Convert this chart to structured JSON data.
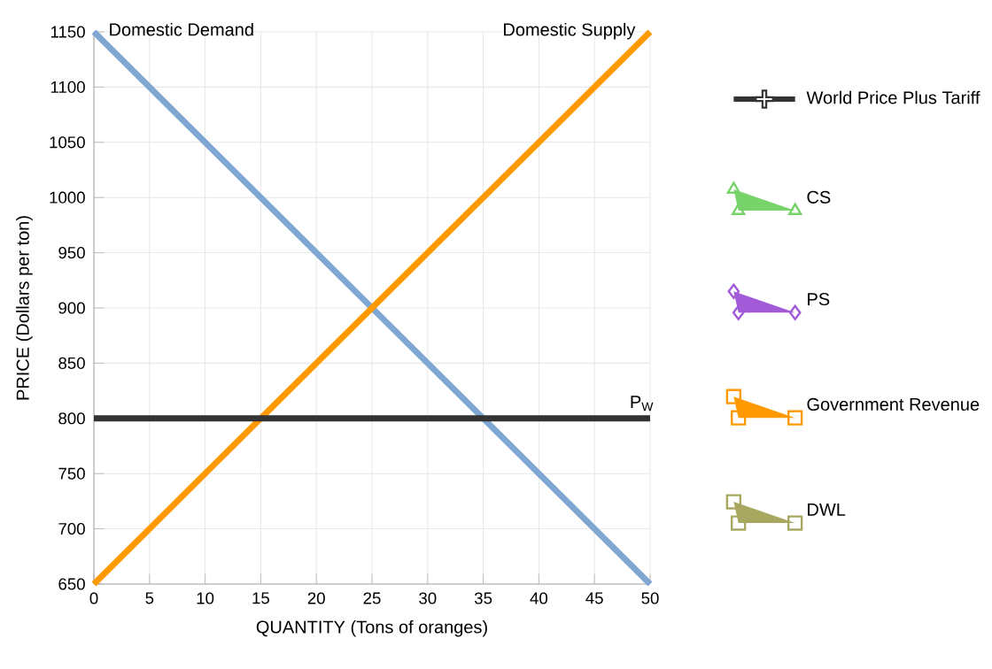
{
  "chart_data": {
    "type": "line",
    "xlabel": "QUANTITY (Tons of oranges)",
    "ylabel": "PRICE (Dollars per ton)",
    "x": [
      0,
      50
    ],
    "xlim": [
      0,
      50
    ],
    "ylim": [
      650,
      1150
    ],
    "xticks": [
      0,
      5,
      10,
      15,
      20,
      25,
      30,
      35,
      40,
      45,
      50
    ],
    "yticks": [
      650,
      700,
      750,
      800,
      850,
      900,
      950,
      1000,
      1050,
      1100,
      1150
    ],
    "grid": true,
    "legend": "right",
    "series": [
      {
        "name": "Domestic Demand",
        "color": "#7fa7d2",
        "values": [
          1150,
          650
        ]
      },
      {
        "name": "Domestic Supply",
        "color": "#ff9900",
        "values": [
          650,
          1150
        ]
      },
      {
        "name": "P$_{W}$",
        "color": "#333333",
        "values": [
          800,
          800
        ]
      },
      {
        "name": "World Price Plus Tariff",
        "type": "line",
        "marker": "cross",
        "color": "#333333",
        "values": [
          null,
          null
        ]
      },
      {
        "name": "CS",
        "type": "area",
        "marker": "triangle",
        "color": "#77d36a",
        "values": [
          null,
          null
        ]
      },
      {
        "name": "PS",
        "type": "area",
        "marker": "diamond",
        "color": "#a25ad9",
        "values": [
          null,
          null
        ]
      },
      {
        "name": "Government Revenue",
        "type": "area",
        "marker": "square",
        "color": "#ff9900",
        "values": [
          null,
          null
        ]
      },
      {
        "name": "DWL",
        "type": "area",
        "marker": "square",
        "color": "#a8a860",
        "values": [
          null,
          null
        ]
      }
    ]
  }
}
